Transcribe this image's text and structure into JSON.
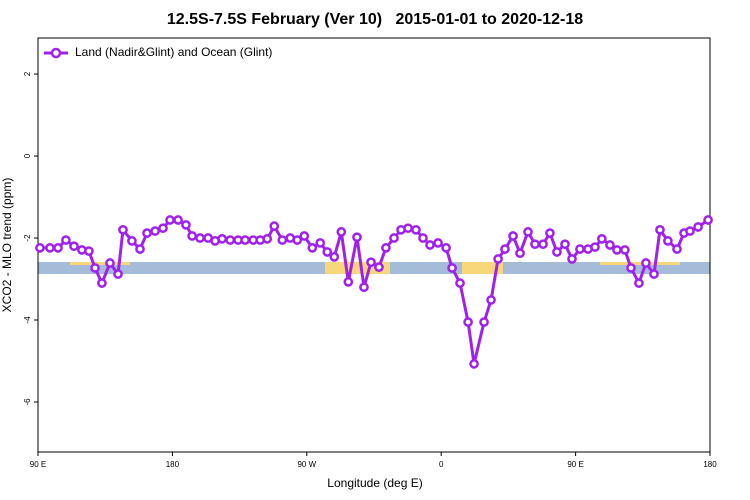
{
  "chart_data": {
    "type": "line",
    "title": "12.5S-7.5S February (Ver 10)   2015-01-01 to 2020-12-18",
    "x_label": "Longitude (deg E)",
    "y_label": "XCO2 - MLO trend (ppm)",
    "xlim": [
      90,
      540
    ],
    "ylim": [
      -7.22,
      2.88
    ],
    "xticks": [
      {
        "value": 90,
        "label": "90 E"
      },
      {
        "value": 180,
        "label": "180"
      },
      {
        "value": 270,
        "label": "90 W"
      },
      {
        "value": 360,
        "label": "0"
      },
      {
        "value": 450,
        "label": "90 E"
      },
      {
        "value": 540,
        "label": "180"
      }
    ],
    "yticks": [
      2,
      0,
      -2,
      -4,
      -6
    ],
    "grid": false,
    "legend": "top-left",
    "series": [
      {
        "name": "Land (Nadir&Glint) and Ocean (Glint)",
        "color": "#a020f0",
        "x": [
          91.3,
          98.0,
          103.4,
          108.7,
          114.1,
          119.4,
          124.1,
          128.2,
          132.8,
          138.2,
          143.6,
          146.9,
          152.9,
          158.3,
          163.0,
          168.4,
          173.7,
          178.4,
          183.8,
          189.1,
          193.2,
          198.5,
          203.9,
          208.6,
          213.3,
          218.7,
          224.0,
          228.7,
          234.1,
          238.8,
          243.5,
          248.2,
          253.6,
          258.9,
          263.6,
          268.3,
          273.7,
          279.0,
          283.7,
          288.4,
          293.1,
          297.8,
          303.6,
          308.3,
          313.0,
          318.3,
          323.0,
          328.4,
          333.1,
          337.8,
          343.1,
          347.8,
          352.5,
          357.9,
          363.3,
          367.3,
          372.6,
          378.0,
          382.0,
          388.7,
          393.4,
          398.1,
          402.7,
          408.1,
          412.8,
          418.1,
          422.8,
          428.2,
          432.8,
          437.5,
          442.9,
          447.6,
          452.9,
          458.3,
          463.0,
          467.6,
          473.0,
          477.7,
          483.0,
          487.1,
          492.4,
          497.1,
          502.5,
          506.5,
          511.8,
          517.9,
          522.6,
          526.6,
          532.0,
          538.7
        ],
        "values": [
          -2.24,
          -2.24,
          -2.24,
          -2.05,
          -2.2,
          -2.29,
          -2.32,
          -2.73,
          -3.1,
          -2.61,
          -2.88,
          -1.8,
          -2.07,
          -2.27,
          -1.88,
          -1.83,
          -1.76,
          -1.56,
          -1.56,
          -1.68,
          -1.95,
          -2.0,
          -2.0,
          -2.07,
          -2.02,
          -2.05,
          -2.05,
          -2.05,
          -2.05,
          -2.05,
          -2.02,
          -1.71,
          -2.05,
          -2.0,
          -2.05,
          -1.95,
          -2.24,
          -2.12,
          -2.34,
          -2.46,
          -1.85,
          -3.07,
          -1.98,
          -3.2,
          -2.59,
          -2.71,
          -2.24,
          -2.0,
          -1.8,
          -1.76,
          -1.8,
          -2.0,
          -2.17,
          -2.12,
          -2.24,
          -2.73,
          -3.1,
          -4.05,
          -5.07,
          -4.05,
          -3.51,
          -2.51,
          -2.27,
          -1.95,
          -2.37,
          -1.85,
          -2.15,
          -2.15,
          -1.88,
          -2.34,
          -2.15,
          -2.51,
          -2.27,
          -2.27,
          -2.22,
          -2.02,
          -2.17,
          -2.29,
          -2.29,
          -2.73,
          -3.1,
          -2.61,
          -2.88,
          -1.8,
          -2.07,
          -2.27,
          -1.88,
          -1.83,
          -1.73,
          -1.56
        ]
      }
    ]
  }
}
